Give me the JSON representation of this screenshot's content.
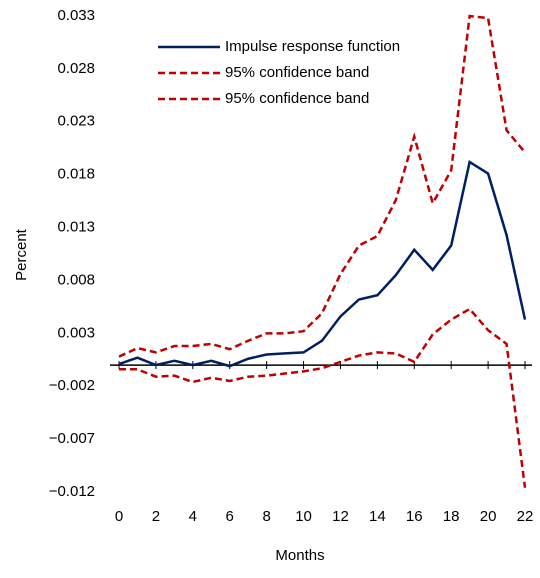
{
  "chart_data": {
    "type": "line",
    "ylabel": "Percent",
    "xlabel": "Months",
    "x": [
      0,
      1,
      2,
      3,
      4,
      5,
      6,
      7,
      8,
      9,
      10,
      11,
      12,
      13,
      14,
      15,
      16,
      17,
      18,
      19,
      20,
      21,
      22
    ],
    "series": [
      {
        "name": "Impulse response function",
        "color": "#002060",
        "line_style": "solid",
        "values": [
          0.0001,
          0.0007,
          0.0,
          0.0004,
          0.0,
          0.0004,
          -0.0001,
          0.0006,
          0.001,
          0.0011,
          0.0012,
          0.0023,
          0.0046,
          0.0062,
          0.0066,
          0.0085,
          0.0109,
          0.009,
          0.0113,
          0.0192,
          0.0181,
          0.0123,
          0.0043
        ]
      },
      {
        "name": "95% confidence band",
        "color": "#c00000",
        "line_style": "dashed",
        "values": [
          0.0008,
          0.0016,
          0.0012,
          0.0018,
          0.0018,
          0.002,
          0.0015,
          0.0023,
          0.003,
          0.003,
          0.0032,
          0.0049,
          0.0086,
          0.0113,
          0.0122,
          0.0156,
          0.0216,
          0.0153,
          0.0184,
          0.033,
          0.0328,
          0.0222,
          0.0201
        ]
      },
      {
        "name": "95% confidence band",
        "color": "#c00000",
        "line_style": "dashed",
        "values": [
          -0.0004,
          -0.0004,
          -0.0011,
          -0.001,
          -0.0016,
          -0.0012,
          -0.0015,
          -0.0011,
          -0.001,
          -0.0008,
          -0.0006,
          -0.0003,
          0.0003,
          0.0009,
          0.0012,
          0.0011,
          0.0003,
          0.0029,
          0.0043,
          0.0053,
          0.0033,
          0.002,
          -0.0116
        ]
      }
    ],
    "xlim": [
      0,
      22
    ],
    "xticks": [
      0,
      2,
      4,
      6,
      8,
      10,
      12,
      14,
      16,
      18,
      20,
      22
    ],
    "ylim": [
      -0.012,
      0.033
    ],
    "yticks": [
      {
        "value": -0.012,
        "label": "−0.012"
      },
      {
        "value": -0.007,
        "label": "−0.007"
      },
      {
        "value": -0.002,
        "label": "−0.002"
      },
      0.003,
      0.008,
      0.013,
      0.018,
      0.023,
      0.028,
      0.033
    ],
    "grid": false,
    "legend": "top"
  }
}
